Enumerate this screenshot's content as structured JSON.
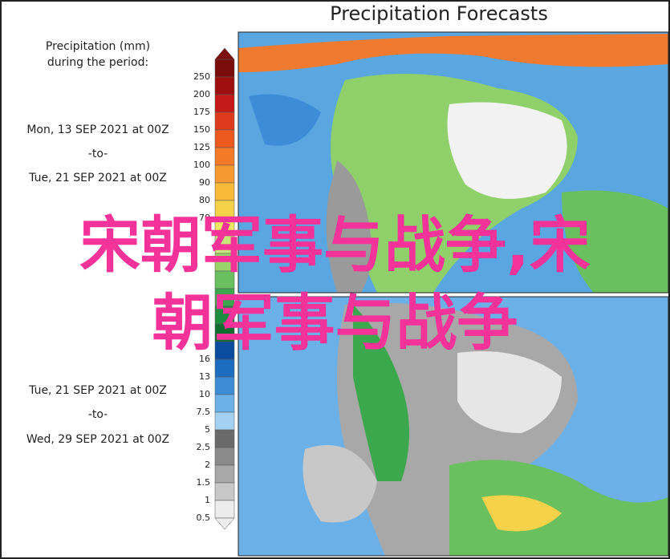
{
  "title": "Precipitation Forecasts",
  "legend": {
    "title_lines": [
      "Precipitation (mm)",
      "during the period:"
    ]
  },
  "colorbar": {
    "labels": [
      250,
      200,
      175,
      150,
      125,
      100,
      90,
      80,
      70,
      null,
      null,
      null,
      null,
      null,
      null,
      null,
      16,
      13,
      10,
      7.5,
      5,
      2.5,
      2,
      1.5,
      1,
      0.5
    ],
    "colors": [
      "#7a0c0c",
      "#9e1010",
      "#c41a18",
      "#de3a1c",
      "#ec5a20",
      "#f37a28",
      "#f69a30",
      "#f8b83a",
      "#f6d24a",
      "#eee860",
      "#c8e67a",
      "#98d46a",
      "#6abf5e",
      "#3ca84e",
      "#1e8c3e",
      "#0e6e30",
      "#0c4c9e",
      "#1c6cc0",
      "#3c8cd8",
      "#6cb0e8",
      "#a4d0f2",
      "#6a6a6a",
      "#8a8a8a",
      "#a8a8a8",
      "#c8c8c8",
      "#ececec"
    ]
  },
  "periods": [
    {
      "start": "Mon, 13 SEP 2021 at 00Z",
      "to": "-to-",
      "end": "Tue, 21 SEP 2021 at 00Z"
    },
    {
      "start": "Tue, 21 SEP 2021 at 00Z",
      "to": "-to-",
      "end": "Wed, 29 SEP 2021 at 00Z"
    }
  ],
  "overlay_text": [
    "宋朝军事与战争,宋",
    "朝军事与战争"
  ]
}
